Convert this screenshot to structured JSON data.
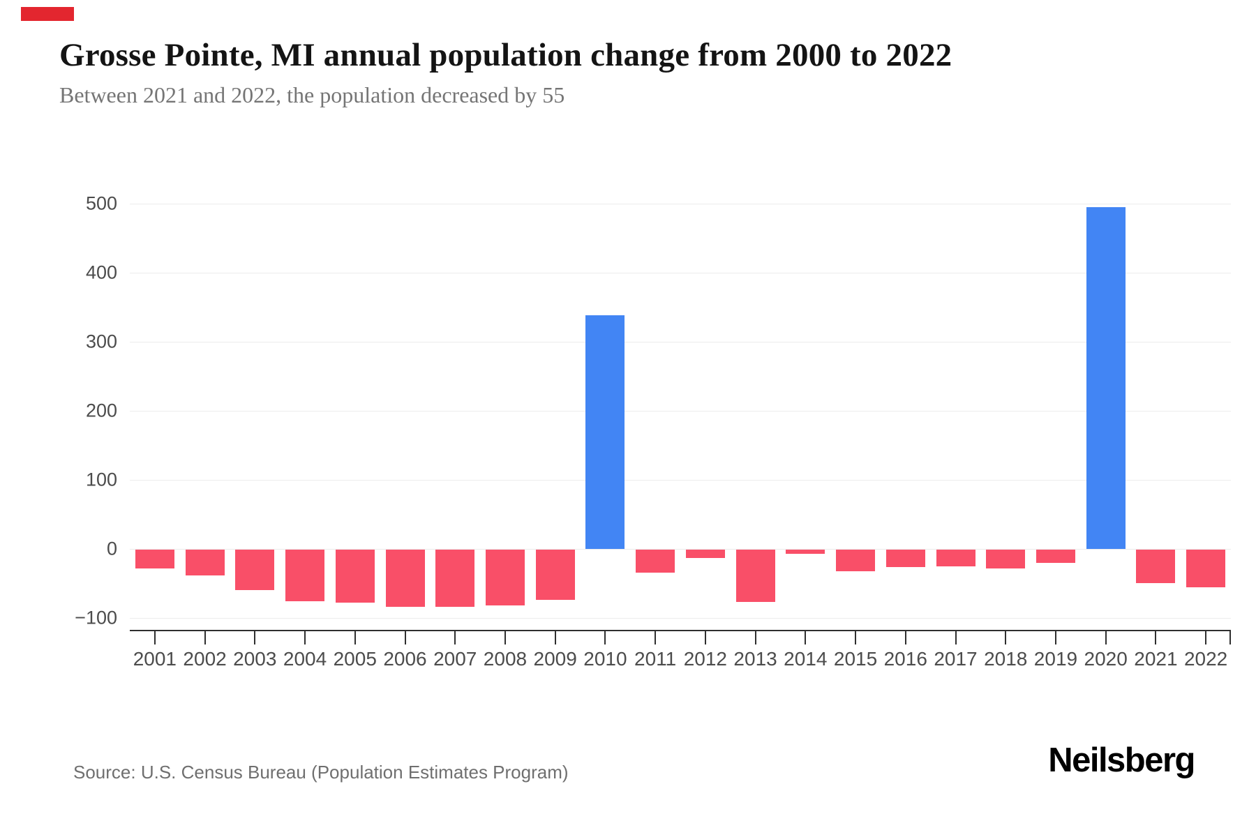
{
  "header": {
    "title": "Grosse Pointe, MI annual population change from 2000 to 2022",
    "subtitle": "Between 2021 and 2022, the population decreased by 55",
    "accent_bar_color": "#e3262f"
  },
  "chart_data": {
    "type": "bar",
    "title": "Grosse Pointe, MI annual population change from 2000 to 2022",
    "categories": [
      "2001",
      "2002",
      "2003",
      "2004",
      "2005",
      "2006",
      "2007",
      "2008",
      "2009",
      "2010",
      "2011",
      "2012",
      "2013",
      "2014",
      "2015",
      "2016",
      "2017",
      "2018",
      "2019",
      "2020",
      "2021",
      "2022"
    ],
    "values": [
      -27,
      -37,
      -59,
      -75,
      -77,
      -83,
      -83,
      -81,
      -73,
      338,
      -33,
      -12,
      -76,
      -6,
      -31,
      -25,
      -24,
      -27,
      -19,
      495,
      -48,
      -55
    ],
    "xlabel": "",
    "ylabel": "",
    "ylim": [
      -100,
      500
    ],
    "yticks": [
      500,
      400,
      300,
      200,
      100,
      0,
      -100
    ],
    "grid": true,
    "legend_position": "none",
    "positive_color": "#4285f4",
    "negative_color": "#f94f68"
  },
  "footer": {
    "source": "Source: U.S. Census Bureau (Population Estimates Program)",
    "logo": "Neilsberg"
  }
}
